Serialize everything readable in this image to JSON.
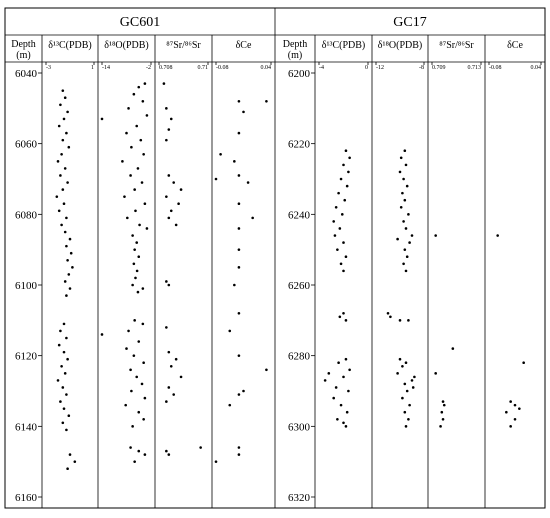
{
  "chart_data": [
    {
      "type": "scatter",
      "title": "GC601",
      "depth_label": "Depth",
      "depth_unit": "(m)",
      "ylim": [
        6040,
        6160
      ],
      "yticks": [
        6040,
        6060,
        6080,
        6100,
        6120,
        6140,
        6160
      ],
      "tracks": [
        {
          "name": "δ¹³C(PDB)",
          "xlim": [
            -3,
            1
          ],
          "xticks": [
            -3,
            1
          ],
          "y": [
            6045,
            6047,
            6049,
            6051,
            6053,
            6055,
            6057,
            6059,
            6061,
            6063,
            6065,
            6067,
            6069,
            6071,
            6073,
            6075,
            6077,
            6079,
            6081,
            6083,
            6085,
            6087,
            6089,
            6091,
            6093,
            6095,
            6097,
            6099,
            6101,
            6103,
            6111,
            6113,
            6115,
            6117,
            6119,
            6121,
            6123,
            6125,
            6127,
            6129,
            6131,
            6133,
            6135,
            6137,
            6139,
            6141,
            6148,
            6150,
            6152
          ],
          "x": [
            -1.6,
            -1.4,
            -1.8,
            -1.2,
            -1.5,
            -1.9,
            -1.3,
            -1.6,
            -1.1,
            -1.7,
            -2.0,
            -1.4,
            -1.8,
            -1.2,
            -1.6,
            -2.1,
            -1.5,
            -1.9,
            -1.3,
            -1.7,
            -1.4,
            -1.0,
            -1.3,
            -0.9,
            -1.2,
            -0.8,
            -1.1,
            -1.4,
            -1.0,
            -1.3,
            -1.5,
            -1.8,
            -1.3,
            -1.9,
            -1.5,
            -1.2,
            -1.7,
            -1.4,
            -2.0,
            -1.6,
            -1.3,
            -1.8,
            -1.5,
            -1.1,
            -1.6,
            -1.3,
            -1.0,
            -0.6,
            -1.2
          ]
        },
        {
          "name": "δ¹⁸O(PDB)",
          "xlim": [
            -14,
            -2
          ],
          "xticks": [
            -14,
            -2
          ],
          "y": [
            6043,
            6044,
            6046,
            6048,
            6050,
            6052,
            6053,
            6055,
            6057,
            6059,
            6061,
            6063,
            6065,
            6067,
            6069,
            6071,
            6073,
            6075,
            6077,
            6079,
            6081,
            6083,
            6084,
            6086,
            6088,
            6090,
            6092,
            6094,
            6096,
            6098,
            6100,
            6101,
            6102,
            6110,
            6111,
            6113,
            6114,
            6116,
            6118,
            6120,
            6122,
            6124,
            6126,
            6128,
            6130,
            6132,
            6134,
            6136,
            6138,
            6140,
            6146,
            6147,
            6148,
            6150
          ],
          "x": [
            -3.5,
            -5.0,
            -6.2,
            -4.0,
            -7.5,
            -3.0,
            -14.0,
            -5.5,
            -8.0,
            -4.5,
            -6.8,
            -3.8,
            -9.0,
            -5.2,
            -7.0,
            -4.2,
            -6.0,
            -8.5,
            -3.5,
            -5.8,
            -7.8,
            -4.8,
            -3.0,
            -6.5,
            -5.5,
            -6.0,
            -5.0,
            -6.2,
            -5.4,
            -5.8,
            -6.5,
            -4.0,
            -5.2,
            -6.0,
            -4.0,
            -7.5,
            -14.0,
            -5.0,
            -8.0,
            -6.2,
            -3.8,
            -7.0,
            -5.5,
            -4.2,
            -6.8,
            -3.5,
            -8.2,
            -5.0,
            -3.8,
            -6.5,
            -7.0,
            -5.0,
            -3.5,
            -6.0
          ]
        },
        {
          "name": "⁸⁷Sr/⁸⁶Sr",
          "xlim": [
            0.708,
            0.71
          ],
          "xticks": [
            0.708,
            0.71
          ],
          "y": [
            6043,
            6050,
            6053,
            6056,
            6059,
            6069,
            6071,
            6073,
            6075,
            6077,
            6079,
            6081,
            6083,
            6099,
            6100,
            6112,
            6119,
            6121,
            6123,
            6126,
            6129,
            6131,
            6133,
            6146,
            6147,
            6148
          ],
          "x": [
            0.7082,
            0.7083,
            0.7085,
            0.7084,
            0.7083,
            0.7084,
            0.7086,
            0.7089,
            0.7083,
            0.7088,
            0.7085,
            0.7084,
            0.7087,
            0.7083,
            0.7084,
            0.7083,
            0.7084,
            0.7087,
            0.7085,
            0.7089,
            0.7084,
            0.7086,
            0.7083,
            0.7097,
            0.7083,
            0.7084
          ]
        },
        {
          "name": "δCe",
          "xlim": [
            -0.08,
            0.04
          ],
          "xticks": [
            -0.08,
            0.04
          ],
          "y": [
            6048,
            6048,
            6051,
            6057,
            6063,
            6065,
            6069,
            6070,
            6071,
            6077,
            6081,
            6084,
            6090,
            6095,
            6100,
            6108,
            6113,
            6120,
            6124,
            6130,
            6131,
            6134,
            6146,
            6148,
            6150
          ],
          "x": [
            -0.03,
            0.03,
            -0.02,
            -0.03,
            -0.07,
            -0.04,
            -0.03,
            -0.08,
            -0.01,
            -0.03,
            0.0,
            -0.03,
            -0.03,
            -0.03,
            -0.04,
            -0.03,
            -0.05,
            -0.03,
            0.03,
            -0.02,
            -0.03,
            -0.05,
            -0.03,
            -0.03,
            -0.08
          ]
        }
      ]
    },
    {
      "type": "scatter",
      "title": "GC17",
      "depth_label": "Depth",
      "depth_unit": "(m)",
      "ylim": [
        6200,
        6320
      ],
      "yticks": [
        6200,
        6220,
        6240,
        6260,
        6280,
        6300,
        6320
      ],
      "tracks": [
        {
          "name": "δ¹³C(PDB)",
          "xlim": [
            -4,
            0
          ],
          "xticks": [
            -4,
            0
          ],
          "y": [
            6222,
            6224,
            6226,
            6228,
            6230,
            6232,
            6234,
            6236,
            6238,
            6240,
            6242,
            6244,
            6246,
            6248,
            6250,
            6252,
            6254,
            6256,
            6268,
            6269,
            6270,
            6281,
            6282,
            6284,
            6285,
            6286,
            6287,
            6289,
            6290,
            6292,
            6294,
            6296,
            6298,
            6299,
            6300
          ],
          "x": [
            -1.8,
            -1.5,
            -2.0,
            -1.6,
            -2.2,
            -1.7,
            -2.4,
            -1.9,
            -2.6,
            -2.1,
            -2.8,
            -2.3,
            -2.7,
            -2.0,
            -2.5,
            -1.8,
            -2.2,
            -2.0,
            -2.0,
            -2.3,
            -1.8,
            -1.8,
            -2.4,
            -1.5,
            -3.2,
            -2.0,
            -3.5,
            -2.6,
            -1.6,
            -2.8,
            -2.2,
            -1.7,
            -2.5,
            -2.0,
            -1.8
          ]
        },
        {
          "name": "δ¹⁸O(PDB)",
          "xlim": [
            -12,
            -8
          ],
          "xticks": [
            -12,
            -8
          ],
          "y": [
            6222,
            6224,
            6226,
            6228,
            6230,
            6232,
            6234,
            6236,
            6238,
            6240,
            6242,
            6244,
            6246,
            6247,
            6248,
            6250,
            6252,
            6254,
            6256,
            6268,
            6269,
            6270,
            6270,
            6281,
            6282,
            6283,
            6285,
            6286,
            6287,
            6288,
            6289,
            6290,
            6292,
            6294,
            6296,
            6298,
            6300
          ],
          "x": [
            -9.6,
            -9.9,
            -9.5,
            -10.0,
            -9.7,
            -9.4,
            -9.8,
            -9.6,
            -9.9,
            -9.3,
            -9.7,
            -9.5,
            -9.0,
            -10.2,
            -9.2,
            -9.6,
            -9.4,
            -9.7,
            -9.5,
            -11.0,
            -10.8,
            -10.0,
            -9.3,
            -10.0,
            -9.5,
            -9.8,
            -10.2,
            -8.8,
            -9.0,
            -9.6,
            -8.9,
            -9.4,
            -9.8,
            -9.2,
            -9.6,
            -9.3,
            -9.5
          ]
        },
        {
          "name": "⁸⁷Sr/⁸⁶Sr",
          "xlim": [
            0.709,
            0.713
          ],
          "xticks": [
            0.709,
            0.713
          ],
          "y": [
            6246,
            6278,
            6285,
            6293,
            6294,
            6296,
            6298,
            6300
          ],
          "x": [
            0.7093,
            0.7107,
            0.7093,
            0.7099,
            0.71,
            0.7098,
            0.7099,
            0.7097
          ]
        },
        {
          "name": "δCe",
          "xlim": [
            -0.08,
            0.04
          ],
          "xticks": [
            -0.08,
            0.04
          ],
          "y": [
            6246,
            6282,
            6293,
            6294,
            6295,
            6296,
            6298,
            6300
          ],
          "x": [
            -0.06,
            0.0,
            -0.03,
            -0.02,
            -0.01,
            -0.04,
            -0.02,
            -0.03
          ]
        }
      ]
    }
  ]
}
